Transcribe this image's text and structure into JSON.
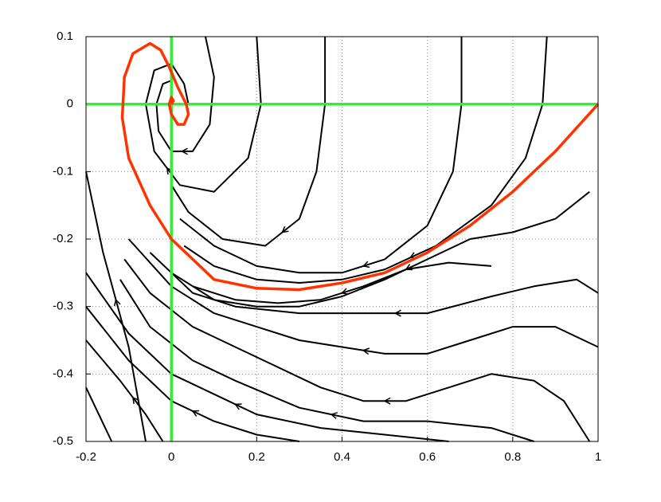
{
  "chart_data": {
    "type": "line",
    "xlim": [
      -0.2,
      1
    ],
    "ylim": [
      -0.5,
      0.1
    ],
    "xticks": [
      -0.2,
      0,
      0.2,
      0.4,
      0.6,
      0.8,
      1
    ],
    "yticks": [
      -0.5,
      -0.4,
      -0.3,
      -0.2,
      -0.1,
      0,
      0.1
    ],
    "grid": true,
    "series": [
      {
        "color": "#000000",
        "x": [
          0.36,
          0.36,
          0.34,
          0.3,
          0.22,
          0.12,
          0.04,
          0.0
        ],
        "values": [
          0.1,
          0.0,
          -0.1,
          -0.17,
          -0.21,
          -0.2,
          -0.16,
          -0.12
        ]
      },
      {
        "color": "#000000",
        "x": [
          0.68,
          0.68,
          0.66,
          0.6,
          0.5,
          0.4,
          0.3,
          0.2,
          0.1,
          0.02
        ],
        "values": [
          0.1,
          0.0,
          -0.1,
          -0.18,
          -0.23,
          -0.25,
          -0.25,
          -0.24,
          -0.21,
          -0.17
        ]
      },
      {
        "color": "#000000",
        "x": [
          0.88,
          0.87,
          0.83,
          0.75,
          0.62,
          0.5,
          0.4,
          0.3,
          0.2,
          0.1,
          0.03
        ],
        "values": [
          0.1,
          0.0,
          -0.08,
          -0.15,
          -0.21,
          -0.245,
          -0.26,
          -0.265,
          -0.26,
          -0.24,
          -0.21
        ]
      },
      {
        "color": "#000000",
        "x": [
          0.2,
          0.21,
          0.18,
          0.1,
          0.02,
          -0.04,
          -0.06,
          -0.04,
          0.0,
          0.03,
          0.04
        ],
        "values": [
          0.1,
          0.0,
          -0.08,
          -0.13,
          -0.12,
          -0.07,
          0.0,
          0.05,
          0.06,
          0.03,
          0.0
        ]
      },
      {
        "color": "#000000",
        "x": [
          0.08,
          0.1,
          0.09,
          0.05,
          0.0,
          -0.03,
          -0.035,
          -0.02,
          0.0
        ],
        "values": [
          0.1,
          0.04,
          -0.03,
          -0.07,
          -0.07,
          -0.04,
          0.0,
          0.03,
          0.035
        ]
      },
      {
        "color": "#000000",
        "x": [
          0.75,
          0.65,
          0.55,
          0.45,
          0.35,
          0.25,
          0.15,
          0.05
        ],
        "values": [
          -0.24,
          -0.235,
          -0.245,
          -0.27,
          -0.29,
          -0.295,
          -0.29,
          -0.27
        ]
      },
      {
        "color": "#000000",
        "x": [
          0.98,
          0.9,
          0.8,
          0.7,
          0.6,
          0.5,
          0.4,
          0.3,
          0.2,
          0.1,
          0.0
        ],
        "values": [
          -0.13,
          -0.17,
          -0.19,
          -0.2,
          -0.23,
          -0.26,
          -0.285,
          -0.3,
          -0.3,
          -0.29,
          -0.25
        ]
      },
      {
        "color": "#000000",
        "x": [
          1.0,
          0.95,
          0.85,
          0.75,
          0.6,
          0.45,
          0.3,
          0.15,
          0.05,
          -0.05
        ],
        "values": [
          -0.28,
          -0.26,
          -0.27,
          -0.285,
          -0.31,
          -0.31,
          -0.31,
          -0.3,
          -0.28,
          -0.22
        ]
      },
      {
        "color": "#000000",
        "x": [
          1.0,
          0.9,
          0.8,
          0.7,
          0.6,
          0.5,
          0.4,
          0.3,
          0.2,
          0.1,
          0.0,
          -0.1
        ],
        "values": [
          -0.36,
          -0.33,
          -0.33,
          -0.35,
          -0.37,
          -0.37,
          -0.36,
          -0.35,
          -0.33,
          -0.31,
          -0.27,
          -0.2
        ]
      },
      {
        "color": "#000000",
        "x": [
          0.98,
          0.92,
          0.85,
          0.75,
          0.65,
          0.55,
          0.45,
          0.35,
          0.25,
          0.15,
          0.05,
          -0.05,
          -0.11
        ],
        "values": [
          -0.5,
          -0.44,
          -0.41,
          -0.4,
          -0.42,
          -0.44,
          -0.44,
          -0.42,
          -0.39,
          -0.36,
          -0.33,
          -0.28,
          -0.23
        ]
      },
      {
        "color": "#000000",
        "x": [
          0.85,
          0.75,
          0.6,
          0.45,
          0.3,
          0.15,
          0.05,
          -0.05,
          -0.12
        ],
        "values": [
          -0.5,
          -0.48,
          -0.47,
          -0.47,
          -0.45,
          -0.41,
          -0.38,
          -0.33,
          -0.26
        ]
      },
      {
        "color": "#000000",
        "x": [
          0.65,
          0.5,
          0.35,
          0.2,
          0.1,
          0.0,
          -0.1,
          -0.2
        ],
        "values": [
          -0.5,
          -0.49,
          -0.48,
          -0.46,
          -0.43,
          -0.4,
          -0.34,
          -0.25
        ]
      },
      {
        "color": "#000000",
        "x": [
          0.3,
          0.2,
          0.1,
          0.0,
          -0.1,
          -0.2
        ],
        "values": [
          -0.5,
          -0.49,
          -0.47,
          -0.44,
          -0.38,
          -0.3
        ]
      },
      {
        "color": "#000000",
        "x": [
          -0.02,
          -0.06,
          -0.12,
          -0.2
        ],
        "values": [
          -0.5,
          -0.46,
          -0.41,
          -0.35
        ]
      },
      {
        "color": "#000000",
        "x": [
          -0.14,
          -0.2
        ],
        "values": [
          -0.5,
          -0.42
        ]
      },
      {
        "color": "#000000",
        "x": [
          -0.06,
          -0.1,
          -0.16,
          -0.2
        ],
        "values": [
          -0.5,
          -0.36,
          -0.22,
          -0.1
        ]
      },
      {
        "color": "#33ee33",
        "x": [
          0,
          0
        ],
        "values": [
          -0.5,
          0.1
        ]
      },
      {
        "color": "#33ee33",
        "x": [
          -0.2,
          1
        ],
        "values": [
          0,
          0
        ]
      },
      {
        "color": "#ff3300",
        "x": [
          1.0,
          0.9,
          0.8,
          0.7,
          0.6,
          0.5,
          0.4,
          0.3,
          0.2,
          0.1,
          0.0,
          -0.05,
          -0.1,
          -0.115,
          -0.11,
          -0.09,
          -0.05,
          -0.025,
          -0.005,
          0.015,
          0.035,
          0.04,
          0.03,
          0.015,
          0.0,
          -0.005,
          0.0,
          0.005,
          0.0
        ],
        "values": [
          0,
          -0.07,
          -0.13,
          -0.18,
          -0.22,
          -0.25,
          -0.265,
          -0.275,
          -0.273,
          -0.26,
          -0.2,
          -0.15,
          -0.08,
          -0.02,
          0.04,
          0.075,
          0.09,
          0.08,
          0.055,
          0.025,
          0.0,
          -0.015,
          -0.03,
          -0.03,
          -0.015,
          0.0,
          0.01,
          0.005,
          0.0
        ]
      }
    ]
  }
}
